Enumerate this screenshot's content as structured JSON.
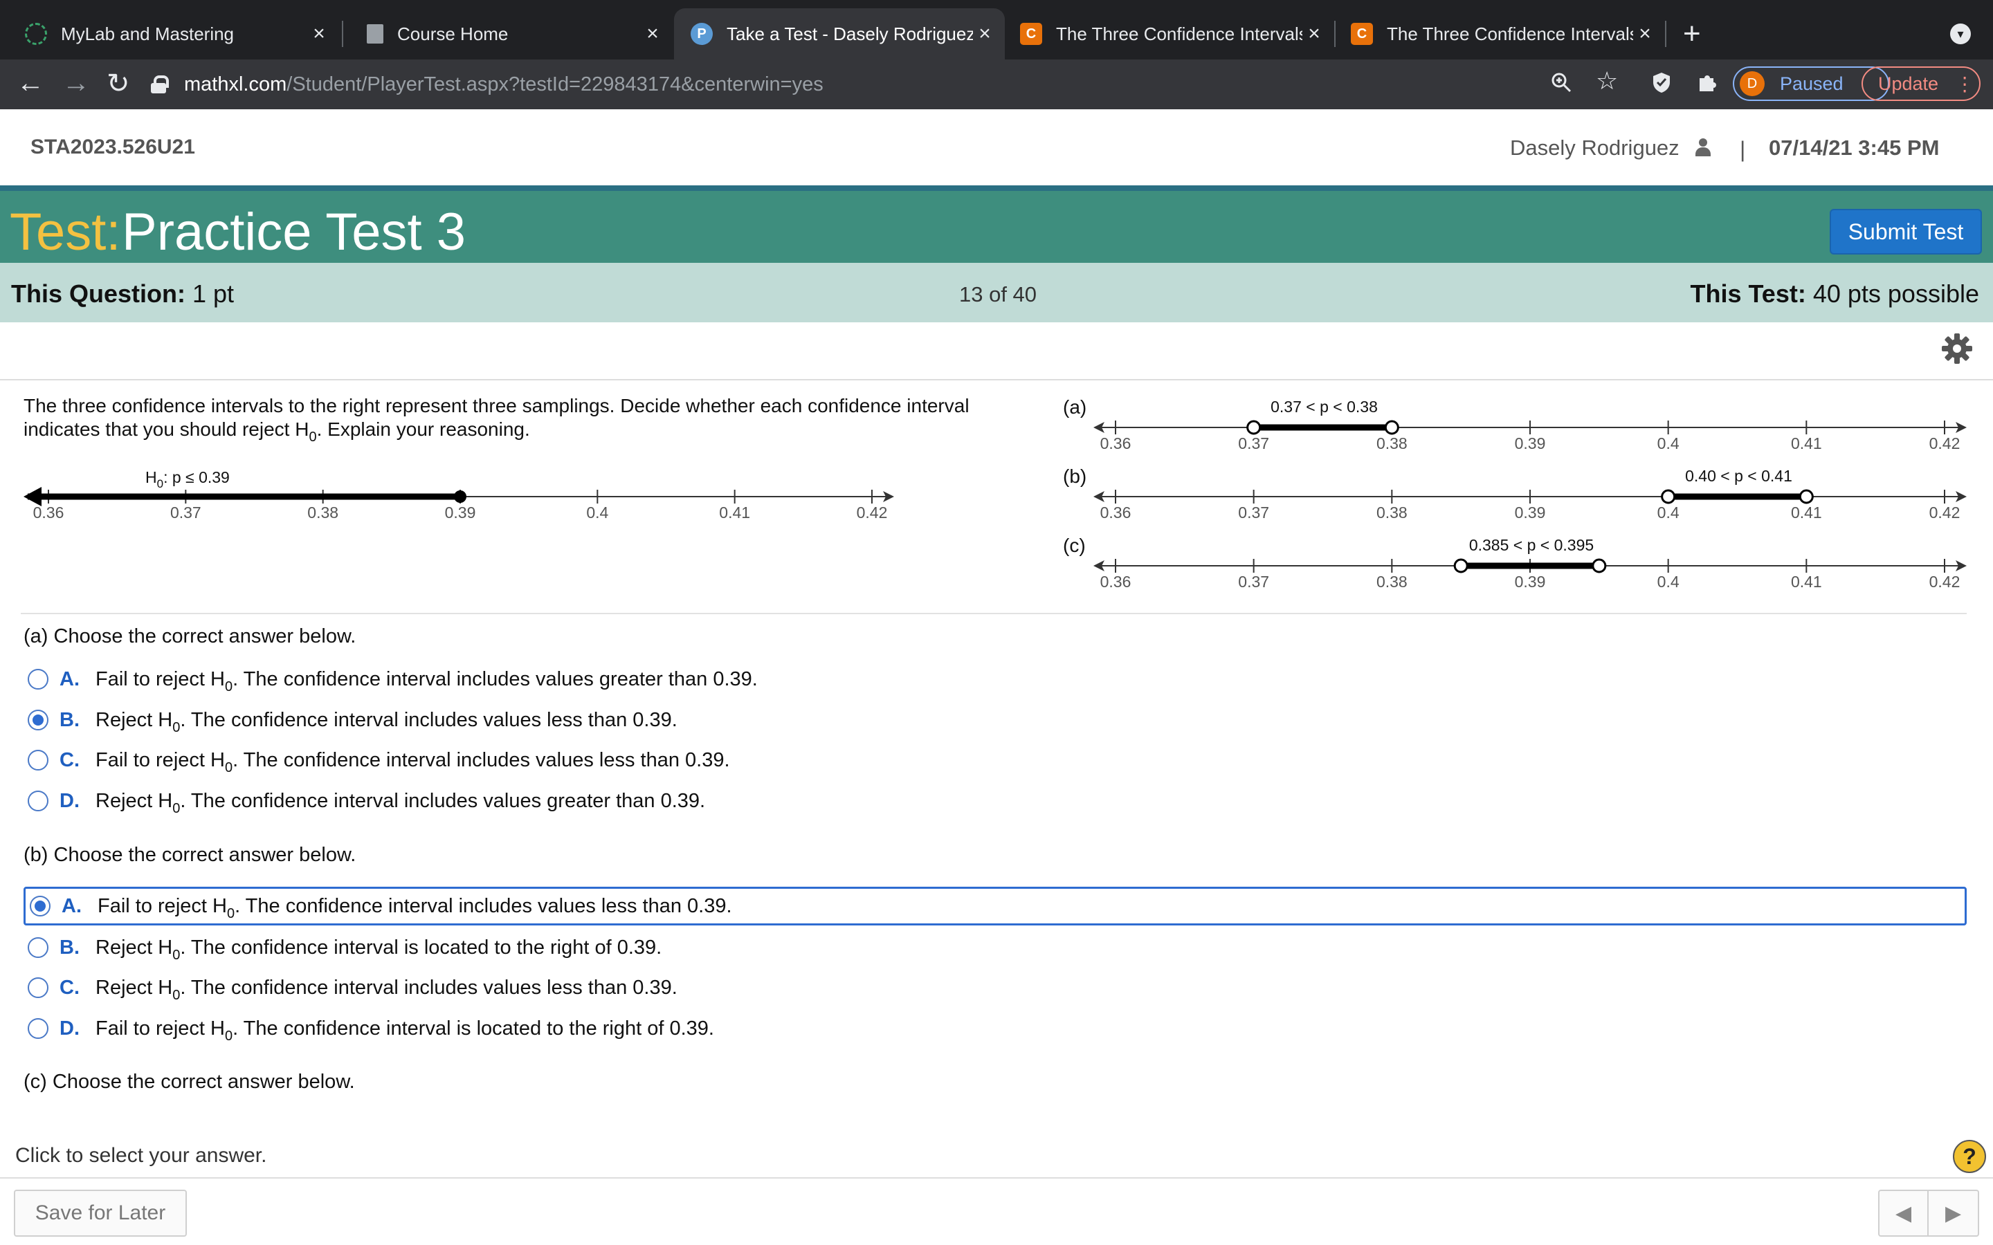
{
  "browser": {
    "tabs": [
      {
        "title": "MyLab and Mastering",
        "favicon": "mylab-icon",
        "active": false
      },
      {
        "title": "Course Home",
        "favicon": "document-icon",
        "active": false
      },
      {
        "title": "Take a Test - Dasely Rodriguez",
        "favicon": "pearson-icon",
        "active": true
      },
      {
        "title": "The Three Confidence Intervals",
        "favicon": "chegg-icon",
        "active": false
      },
      {
        "title": "The Three Confidence Intervals",
        "favicon": "chegg-icon",
        "active": false
      }
    ],
    "close_glyph": "×",
    "new_tab_glyph": "+",
    "url_host": "mathxl.com",
    "url_path": "/Student/PlayerTest.aspx?testId=229843174&centerwin=yes",
    "profile_initial": "D",
    "profile_status": "Paused",
    "update_label": "Update"
  },
  "header": {
    "course_id": "STA2023.526U21",
    "user_name": "Dasely Rodriguez",
    "divider": "|",
    "datetime": "07/14/21 3:45 PM",
    "test_label": "Test:",
    "test_name": "Practice Test 3",
    "submit_label": "Submit Test"
  },
  "question_bar": {
    "this_question_label": "This Question:",
    "this_question_value": "1 pt",
    "progress": "13 of 40",
    "this_test_label": "This Test:",
    "this_test_value": "40 pts possible"
  },
  "question": {
    "prompt_line1": "The three confidence intervals to the right represent three samplings. Decide whether each confidence interval",
    "prompt_line2_pre": "indicates that you should reject H",
    "prompt_line2_post": ". Explain your reasoning.",
    "subscript": "0",
    "hypothesis_pre": "H",
    "hypothesis_post": ": p ≤ 0.39",
    "tick_labels": [
      "0.36",
      "0.37",
      "0.38",
      "0.39",
      "0.4",
      "0.41",
      "0.42"
    ],
    "intervals": [
      {
        "tag": "(a)",
        "label": "0.37 < p < 0.38",
        "low": 0.37,
        "high": 0.38
      },
      {
        "tag": "(b)",
        "label": "0.40 < p < 0.41",
        "low": 0.4,
        "high": 0.41
      },
      {
        "tag": "(c)",
        "label": "0.385 < p < 0.395",
        "low": 0.385,
        "high": 0.395
      }
    ],
    "hypothesis_bound": 0.39,
    "axis_range": [
      0.36,
      0.42
    ]
  },
  "parts": [
    {
      "heading": "(a) Choose the correct answer below.",
      "options": [
        {
          "letter": "A.",
          "pre": "Fail to reject H",
          "post": ". The confidence interval includes values greater than 0.39.",
          "selected": false
        },
        {
          "letter": "B.",
          "pre": "Reject H",
          "post": ". The confidence interval includes values less than 0.39.",
          "selected": true
        },
        {
          "letter": "C.",
          "pre": "Fail to reject H",
          "post": ". The confidence interval includes values less than 0.39.",
          "selected": false
        },
        {
          "letter": "D.",
          "pre": "Reject H",
          "post": ". The confidence interval includes values greater than 0.39.",
          "selected": false
        }
      ]
    },
    {
      "heading": "(b) Choose the correct answer below.",
      "options": [
        {
          "letter": "A.",
          "pre": "Fail to reject H",
          "post": ". The confidence interval includes values less than 0.39.",
          "selected": true
        },
        {
          "letter": "B.",
          "pre": "Reject H",
          "post": ". The confidence interval is located to the right of 0.39.",
          "selected": false
        },
        {
          "letter": "C.",
          "pre": "Reject H",
          "post": ". The confidence interval includes values less than 0.39.",
          "selected": false
        },
        {
          "letter": "D.",
          "pre": "Fail to reject H",
          "post": ". The confidence interval is located to the right of 0.39.",
          "selected": false
        }
      ]
    },
    {
      "heading": "(c) Choose the correct answer below.",
      "options": []
    }
  ],
  "footer": {
    "status": "Click to select your answer.",
    "help": "?",
    "save_label": "Save for Later",
    "prev_glyph": "◀",
    "next_glyph": "▶"
  },
  "colors": {
    "teal_header": "#3e8e7e",
    "test_label": "#f4c141",
    "question_bar": "#c0dbd6",
    "submit_button": "#1f74c9",
    "option_letter": "#1f5fc0"
  }
}
